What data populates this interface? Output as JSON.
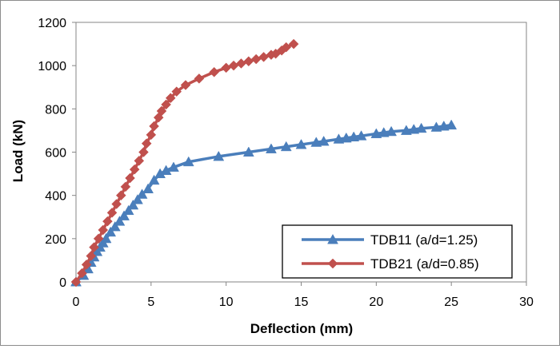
{
  "chart_data": {
    "type": "line",
    "title": "",
    "xlabel": "Deflection (mm)",
    "ylabel": "Load (kN)",
    "xlim": [
      0,
      30
    ],
    "ylim": [
      0,
      1200
    ],
    "xticks": [
      "0",
      "5",
      "10",
      "15",
      "20",
      "25",
      "30"
    ],
    "yticks": [
      "0",
      "200",
      "400",
      "600",
      "800",
      "1000",
      "1200"
    ],
    "grid": false,
    "legend_position": "bottom-right",
    "series": [
      {
        "name": "TDB11 (a/d=1.25)",
        "color": "#4a7ebb",
        "marker": "triangle",
        "x": [
          0,
          0.5,
          0.8,
          1.0,
          1.2,
          1.4,
          1.6,
          1.8,
          2.0,
          2.3,
          2.6,
          2.9,
          3.2,
          3.5,
          3.8,
          4.1,
          4.4,
          4.8,
          5.2,
          5.6,
          6.0,
          6.5,
          7.5,
          9.5,
          11.5,
          13.0,
          14.0,
          15.0,
          16.0,
          16.5,
          17.5,
          18.0,
          18.5,
          19.0,
          20.0,
          20.5,
          21.0,
          22.0,
          22.5,
          23.0,
          24.0,
          24.5,
          25.0
        ],
        "y": [
          0,
          30,
          60,
          90,
          115,
          140,
          160,
          180,
          200,
          230,
          255,
          280,
          305,
          330,
          355,
          380,
          405,
          430,
          470,
          500,
          515,
          530,
          555,
          580,
          600,
          615,
          625,
          635,
          645,
          650,
          660,
          665,
          670,
          675,
          685,
          690,
          695,
          700,
          705,
          710,
          715,
          720,
          725
        ]
      },
      {
        "name": "TDB21 (a/d=0.85)",
        "color": "#c0504d",
        "marker": "diamond",
        "x": [
          0,
          0.4,
          0.7,
          1.0,
          1.2,
          1.5,
          1.8,
          2.1,
          2.4,
          2.7,
          3.0,
          3.3,
          3.6,
          3.9,
          4.2,
          4.5,
          4.7,
          5.0,
          5.2,
          5.5,
          5.7,
          6.0,
          6.3,
          6.7,
          7.3,
          8.2,
          9.2,
          10.0,
          10.5,
          11.0,
          11.5,
          12.0,
          12.5,
          13.0,
          13.3,
          13.7,
          14.0,
          14.5
        ],
        "y": [
          0,
          40,
          80,
          120,
          160,
          200,
          240,
          280,
          320,
          360,
          400,
          440,
          480,
          520,
          560,
          600,
          640,
          680,
          720,
          760,
          790,
          820,
          850,
          880,
          910,
          940,
          970,
          990,
          1000,
          1010,
          1020,
          1030,
          1040,
          1050,
          1055,
          1070,
          1085,
          1100
        ]
      }
    ]
  }
}
